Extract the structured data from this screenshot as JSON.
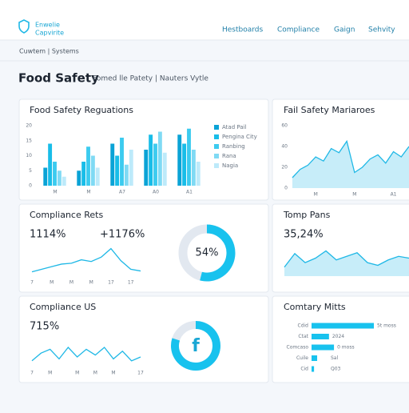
{
  "header": {
    "logo": [
      "Enwelie",
      "Capvirite"
    ],
    "nav": [
      "Hestboards",
      "Compliance",
      "Gaign",
      "Sehvity"
    ]
  },
  "breadcrumb": "Cuwtem | Systems",
  "page": {
    "title": "Food Safety",
    "subtitle": "Fomed lle Patety | Nauters Vytle"
  },
  "regulations": {
    "type": "bar",
    "title": "Food Safety Reguations",
    "categories": [
      "M",
      "M",
      "A7",
      "A0",
      "A1"
    ],
    "ylim": [
      0,
      20
    ],
    "yticks": [
      0,
      5,
      10,
      15,
      20
    ],
    "series": [
      {
        "name": "Atad Pail",
        "color": "#0aa3d6",
        "values": [
          6,
          5,
          14,
          12,
          17
        ]
      },
      {
        "name": "Pengina City",
        "color": "#18bde8",
        "values": [
          14,
          8,
          10,
          17,
          14
        ]
      },
      {
        "name": "Ranbing",
        "color": "#3ccbef",
        "values": [
          8,
          13,
          16,
          14,
          19
        ]
      },
      {
        "name": "Rana",
        "color": "#7fdaf4",
        "values": [
          5,
          10,
          7,
          18,
          12
        ]
      },
      {
        "name": "Nagia",
        "color": "#bdeafa",
        "values": [
          3,
          6,
          12,
          11,
          8
        ]
      }
    ]
  },
  "failsafety": {
    "type": "area",
    "title": "Fail Safety Mariaroes",
    "color": "#1fb8e6",
    "x": [
      0,
      1,
      2,
      3,
      4,
      5,
      6,
      7,
      8,
      9,
      10,
      11,
      12,
      13,
      14,
      15
    ],
    "values": [
      10,
      18,
      22,
      30,
      26,
      38,
      34,
      45,
      15,
      20,
      28,
      32,
      24,
      35,
      30,
      40
    ],
    "xlim": [
      0,
      15
    ],
    "xticks": [
      {
        "value": 3,
        "label": "M"
      },
      {
        "value": 8,
        "label": "M"
      },
      {
        "value": 13,
        "label": "A1"
      }
    ],
    "ylim": [
      0,
      60
    ],
    "yticks": [
      0,
      20,
      40,
      60
    ]
  },
  "compliance_rates": {
    "type": "line",
    "title": "Compliance Rets",
    "kpis": [
      "1114%",
      "+1176%"
    ],
    "color": "#1fb8e6",
    "x": [
      0,
      1,
      2,
      3,
      4,
      5,
      6,
      7,
      8,
      9,
      10,
      11
    ],
    "values": [
      5,
      8,
      11,
      14,
      15,
      19,
      17,
      22,
      32,
      18,
      8,
      6
    ],
    "xlim": [
      0,
      11
    ],
    "ylim": [
      0,
      40
    ],
    "xticks": [
      {
        "value": 0,
        "label": "7"
      },
      {
        "value": 2,
        "label": "M"
      },
      {
        "value": 4,
        "label": "M"
      },
      {
        "value": 6,
        "label": "M"
      },
      {
        "value": 8,
        "label": "17"
      },
      {
        "value": 10,
        "label": "17"
      }
    ]
  },
  "donut1": {
    "type": "pie",
    "values": [
      54
    ],
    "value_labels": [
      "54%"
    ],
    "color": "#18c2ee"
  },
  "temp_pans": {
    "type": "area",
    "title": "Tomp Pans",
    "kpis": [
      "35,24%"
    ],
    "color": "#1fb8e6",
    "x": [
      0,
      1,
      2,
      3,
      4,
      5,
      6,
      7,
      8,
      9,
      10,
      11,
      12
    ],
    "values": [
      10,
      25,
      15,
      20,
      28,
      18,
      22,
      26,
      15,
      12,
      18,
      22,
      20
    ],
    "xlim": [
      0,
      12
    ],
    "ylim": [
      0,
      40
    ]
  },
  "compliance_us": {
    "type": "line",
    "title": "Compliance US",
    "kpis": [
      "715%"
    ],
    "color": "#1fb8e6",
    "x": [
      0,
      1,
      2,
      3,
      4,
      5,
      6,
      7,
      8,
      9,
      10,
      11,
      12
    ],
    "values": [
      6,
      14,
      18,
      8,
      20,
      10,
      18,
      12,
      20,
      8,
      16,
      6,
      10
    ],
    "xlim": [
      0,
      12
    ],
    "ylim": [
      0,
      30
    ],
    "xticks": [
      {
        "value": 0,
        "label": "7"
      },
      {
        "value": 2,
        "label": "M"
      },
      {
        "value": 5,
        "label": "M"
      },
      {
        "value": 7,
        "label": "M"
      },
      {
        "value": 9,
        "label": "M"
      },
      {
        "value": 12,
        "label": "17"
      }
    ]
  },
  "donut2": {
    "type": "pie",
    "values": [
      80
    ],
    "label": "f",
    "color": "#18c2ee"
  },
  "country": {
    "type": "hbar",
    "title": "Comtary Mitts",
    "color": "#18c2ee",
    "categories": [
      "Cdid",
      "Ctat",
      "Comcaso",
      "Cuile",
      "Cid"
    ],
    "values": [
      100,
      28,
      36,
      9,
      4
    ],
    "notes": [
      "5t moss",
      "2024",
      "0 moss",
      "Sal",
      "Q03"
    ],
    "xlim": [
      0,
      100
    ]
  }
}
